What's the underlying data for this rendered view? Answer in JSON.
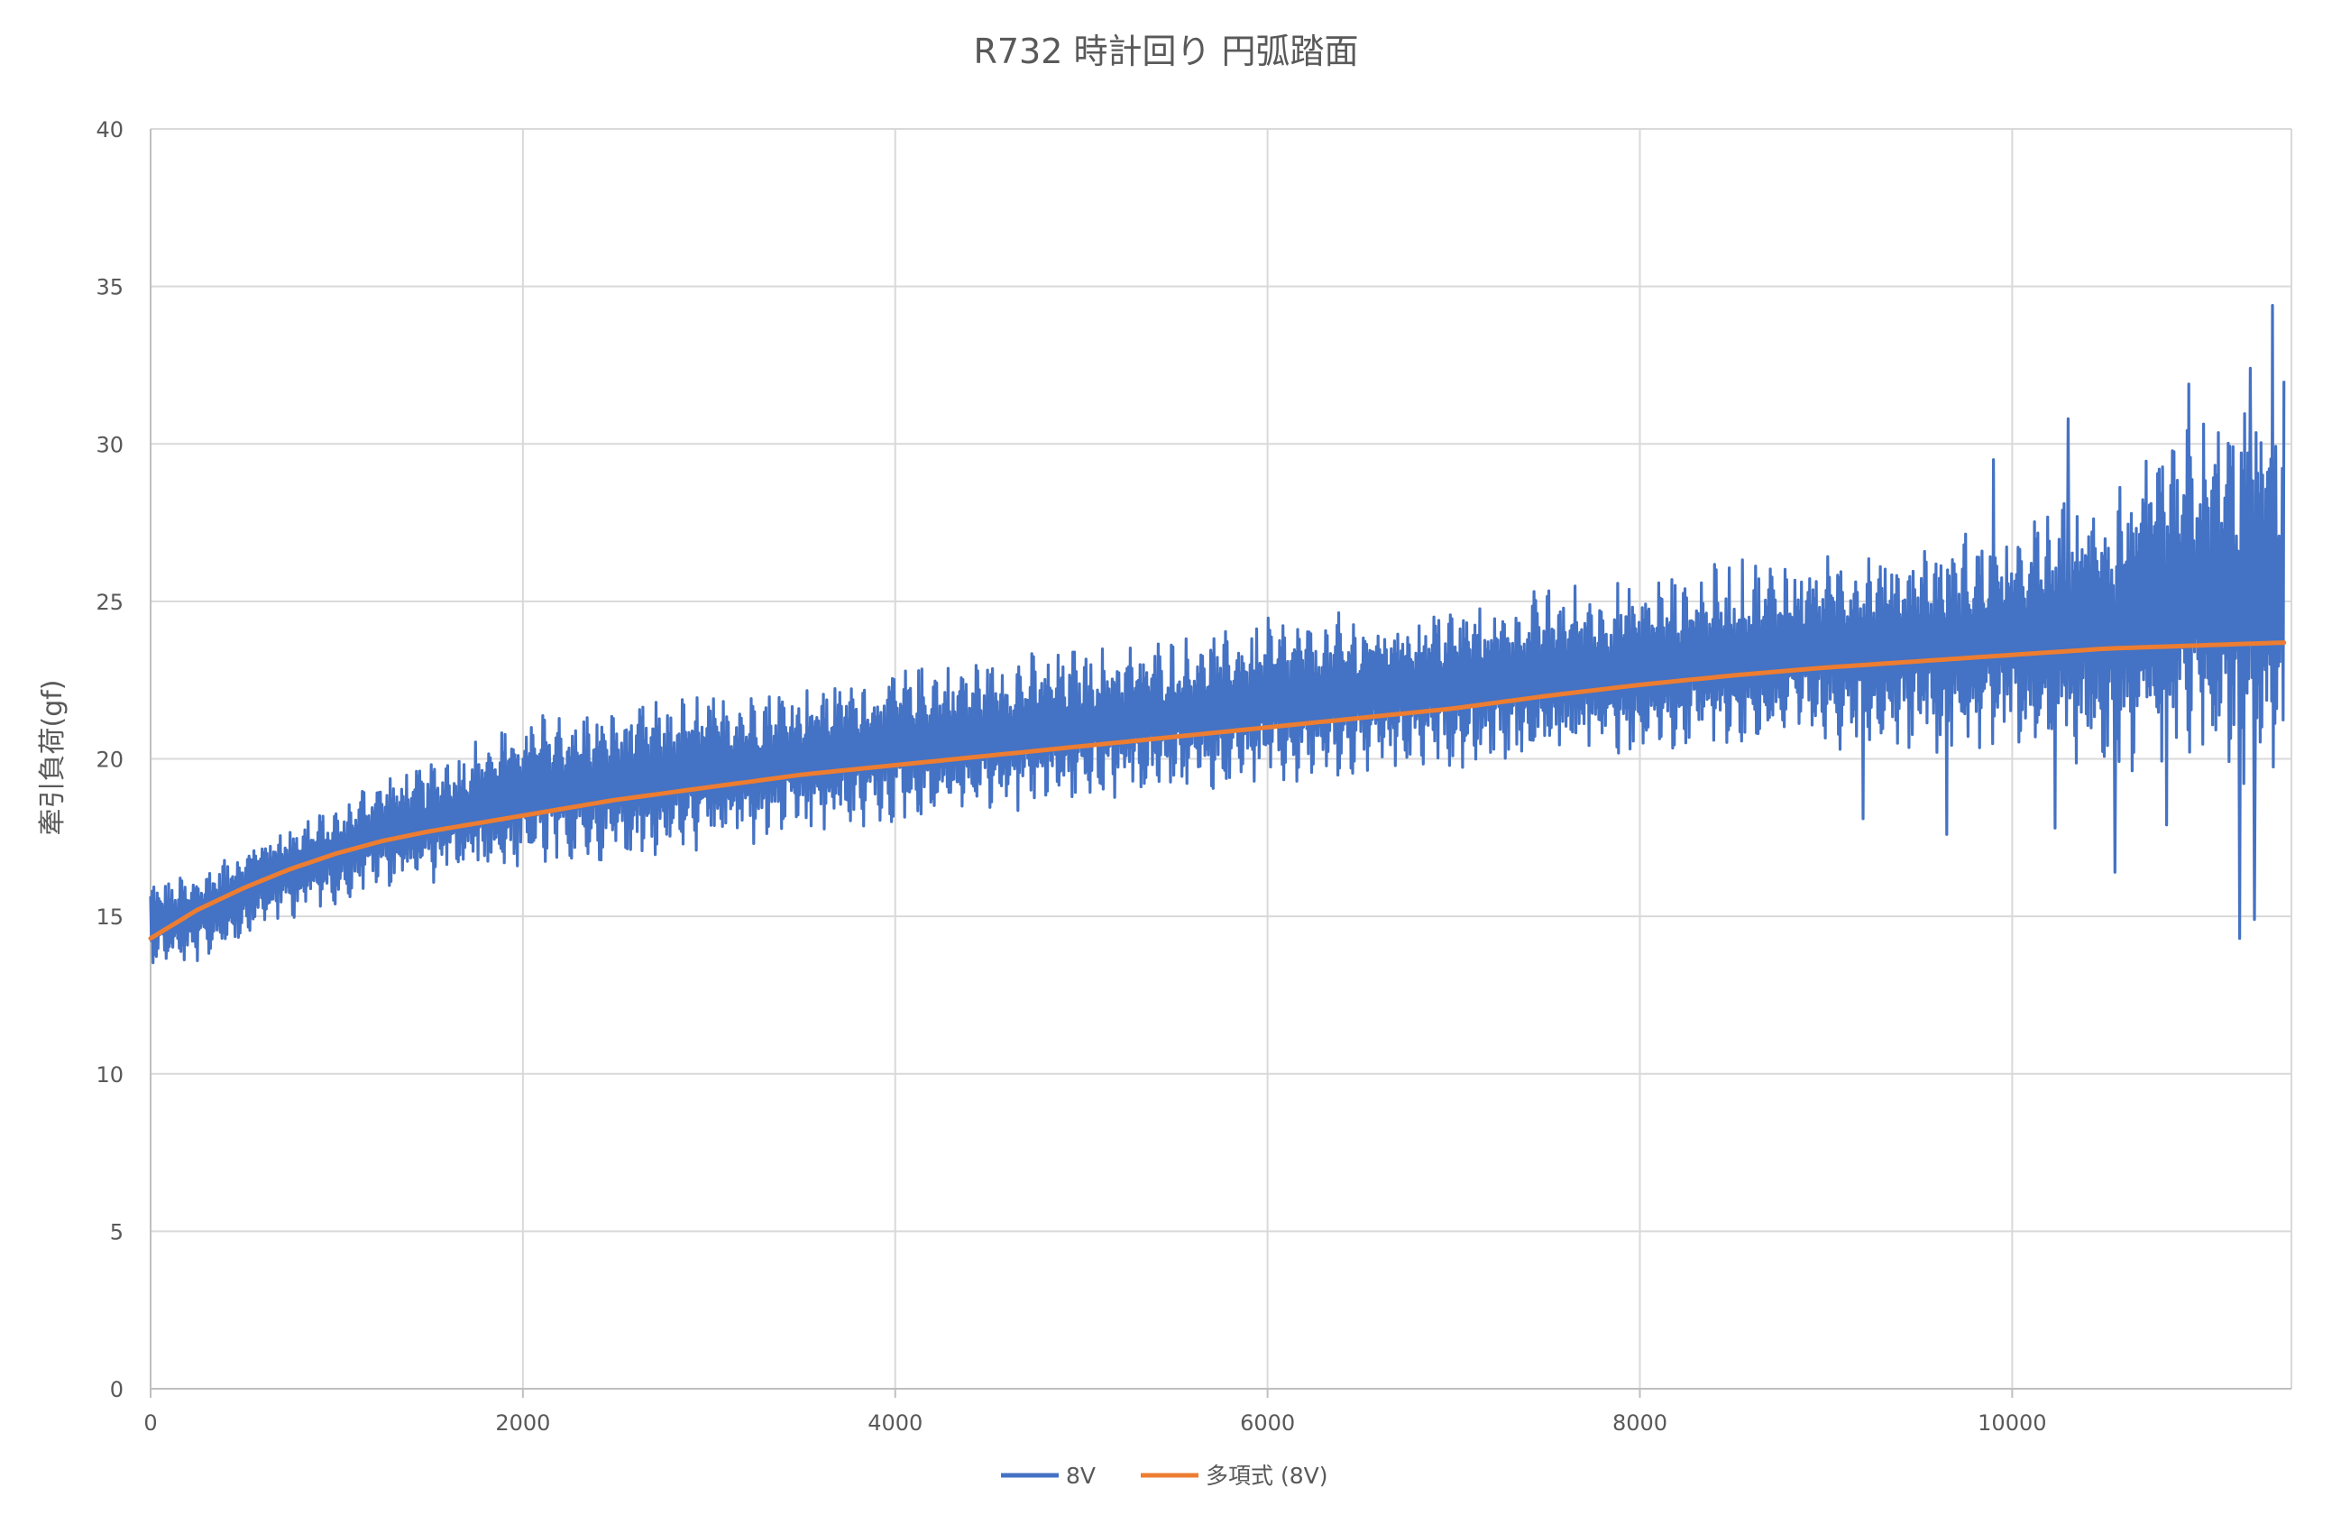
{
  "chart_data": {
    "type": "line",
    "title": "R732 時計回り 円弧踏面",
    "xlabel": "",
    "ylabel": "牽引負荷(gf)",
    "xlim": [
      0,
      11500
    ],
    "ylim": [
      0,
      40
    ],
    "x_ticks": [
      0,
      2000,
      4000,
      6000,
      8000,
      10000
    ],
    "y_ticks": [
      0,
      5,
      10,
      15,
      20,
      25,
      30,
      35,
      40
    ],
    "grid": true,
    "legend_position": "bottom",
    "series": [
      {
        "name": "8V",
        "color": "#4472C4",
        "description_style": "noisy-oscillating",
        "x": [
          0,
          200,
          400,
          600,
          800,
          1000,
          1200,
          1500,
          2000,
          2500,
          3000,
          3500,
          4000,
          4500,
          5000,
          5500,
          6000,
          6500,
          7000,
          7500,
          8000,
          8500,
          9000,
          9500,
          10000,
          10500,
          11000,
          11500
        ],
        "y_upper": [
          16.2,
          16.4,
          17.0,
          17.8,
          18.2,
          18.5,
          19.5,
          20.0,
          21.5,
          21.8,
          22.2,
          22.5,
          23.0,
          23.3,
          23.6,
          23.9,
          24.5,
          24.7,
          25.0,
          25.5,
          25.8,
          26.3,
          26.7,
          27.0,
          27.5,
          29.0,
          31.0,
          32.0
        ],
        "y_lower": [
          13.5,
          13.3,
          13.9,
          14.5,
          15.0,
          15.4,
          15.8,
          16.0,
          16.3,
          16.6,
          17.0,
          17.4,
          17.8,
          18.2,
          18.5,
          18.8,
          19.0,
          19.4,
          19.6,
          19.8,
          20.0,
          20.2,
          20.3,
          20.2,
          20.0,
          19.6,
          19.2,
          19.0
        ],
        "peaks": [
          {
            "x": 9900,
            "y": 29.5
          },
          {
            "x": 10300,
            "y": 30.8
          },
          {
            "x": 10950,
            "y": 31.9
          },
          {
            "x": 11280,
            "y": 32.4
          },
          {
            "x": 11400,
            "y": 34.4
          },
          {
            "x": 11460,
            "y": 32.0
          }
        ],
        "troughs": [
          {
            "x": 9200,
            "y": 18.1
          },
          {
            "x": 9650,
            "y": 17.6
          },
          {
            "x": 10230,
            "y": 17.8
          },
          {
            "x": 10550,
            "y": 16.4
          },
          {
            "x": 10830,
            "y": 17.9
          },
          {
            "x": 11220,
            "y": 14.3
          },
          {
            "x": 11300,
            "y": 14.9
          }
        ]
      },
      {
        "name": "多項式 (8V)",
        "color": "#ED7D31",
        "x": [
          0,
          250,
          500,
          750,
          1000,
          1250,
          1500,
          2000,
          2500,
          3000,
          3500,
          4000,
          4500,
          5000,
          5500,
          6000,
          6500,
          7000,
          7500,
          8000,
          8500,
          9000,
          9500,
          10000,
          10500,
          11000,
          11500
        ],
        "y": [
          14.3,
          15.2,
          15.9,
          16.5,
          17.0,
          17.4,
          17.7,
          18.2,
          18.7,
          19.1,
          19.5,
          19.8,
          20.1,
          20.4,
          20.7,
          21.0,
          21.3,
          21.6,
          22.0,
          22.35,
          22.65,
          22.9,
          23.1,
          23.3,
          23.5,
          23.6,
          23.7
        ]
      }
    ]
  }
}
